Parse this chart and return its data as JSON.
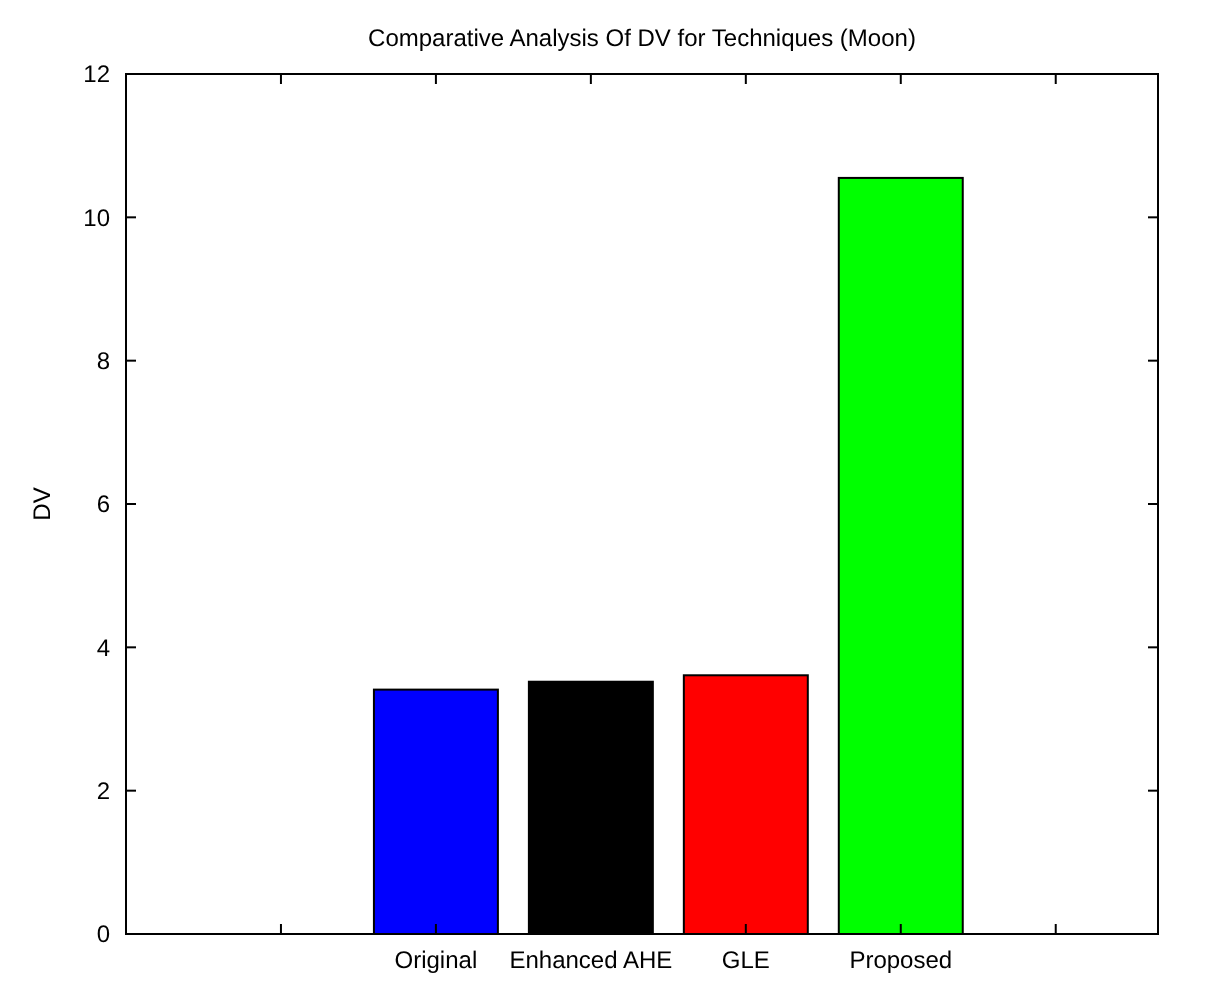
{
  "chart_data": {
    "type": "bar",
    "title": "Comparative Analysis Of DV for Techniques (Moon)",
    "ylabel": "DV",
    "categories": [
      null,
      "Original",
      "Enhanced AHE",
      "GLE",
      "Proposed",
      null
    ],
    "values": [
      null,
      3.41,
      3.52,
      3.61,
      10.55,
      null
    ],
    "colors": [
      null,
      "#0000ff",
      "#000000",
      "#ff0000",
      "#00ff00",
      null
    ],
    "ylim": [
      0,
      12
    ],
    "yticks": [
      0,
      2,
      4,
      6,
      8,
      10,
      12
    ],
    "grid": false
  }
}
